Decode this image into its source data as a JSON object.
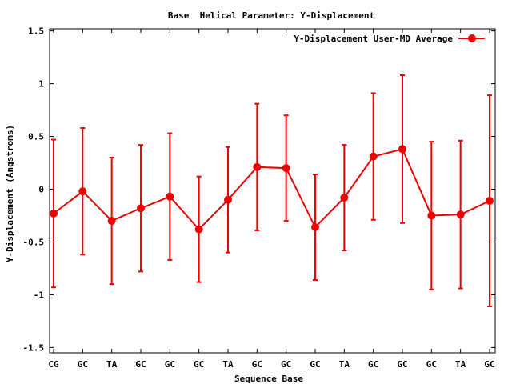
{
  "chart_data": {
    "type": "line",
    "title": "Base  Helical Parameter: Y-Displacement",
    "xlabel": "Sequence Base",
    "ylabel": "Y-Displacement (Angstroms)",
    "categories": [
      "CG",
      "GC",
      "TA",
      "GC",
      "GC",
      "GC",
      "TA",
      "GC",
      "GC",
      "GC",
      "TA",
      "GC",
      "GC",
      "GC",
      "TA",
      "GC"
    ],
    "ylim": [
      -1.55,
      1.52
    ],
    "yticks": [
      1.5,
      1,
      0.5,
      0,
      -0.5,
      -1,
      -1.5
    ],
    "ytick_labels": [
      "1.5",
      "1",
      "0.5",
      "0",
      "-0.5",
      "-1",
      "-1.5"
    ],
    "grid": false,
    "legend_position": "top-right",
    "series": [
      {
        "name": "Y-Displacement User-MD Average",
        "color": "#ee0000",
        "values": [
          -0.23,
          -0.02,
          -0.3,
          -0.18,
          -0.07,
          -0.38,
          -0.1,
          0.21,
          0.2,
          -0.36,
          -0.08,
          0.31,
          0.38,
          -0.25,
          -0.24,
          -0.11
        ],
        "errors": [
          0.7,
          0.6,
          0.6,
          0.6,
          0.6,
          0.5,
          0.5,
          0.6,
          0.5,
          0.5,
          0.5,
          0.6,
          0.7,
          0.7,
          0.7,
          1.0
        ]
      }
    ]
  }
}
